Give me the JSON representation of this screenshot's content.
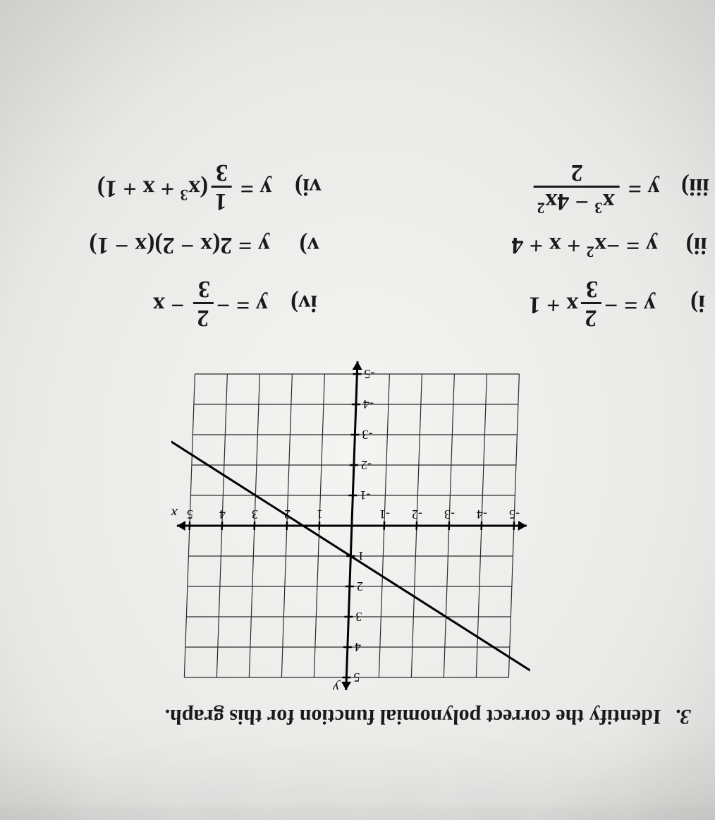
{
  "question": {
    "number": "3.",
    "prompt": "Identify the correct polynomial function for this graph."
  },
  "graph": {
    "type": "line",
    "xlim": [
      -5,
      5
    ],
    "ylim": [
      -5,
      5
    ],
    "xtick_step": 1,
    "ytick_step": 1,
    "grid": true,
    "grid_color": "#2b2b2b",
    "axis_color": "#000000",
    "background_color": "transparent",
    "x_axis_label": "x",
    "y_axis_label": "y",
    "tick_fontsize": 18,
    "axis_label_fontsize": 20,
    "line": {
      "points": [
        [
          -6,
          5
        ],
        [
          7.2,
          -3.8
        ]
      ],
      "color": "#000000",
      "width": 3
    },
    "x_tick_labels": [
      "-5",
      "-4",
      "-3",
      "-2",
      "-1",
      "1",
      "2",
      "3",
      "4",
      "5"
    ],
    "y_tick_labels_pos": [
      "1",
      "2",
      "3",
      "4",
      "5"
    ],
    "y_tick_labels_neg": [
      "-1",
      "-2",
      "-3",
      "-4",
      "-5"
    ]
  },
  "options": {
    "i": {
      "label": "i)",
      "frac_num": "2",
      "frac_den": "3",
      "tail": "x + 1",
      "prefix": "y = −"
    },
    "ii": {
      "label": "ii)",
      "expr_head": "y = −x",
      "exp": "2",
      "expr_tail": " + x + 4"
    },
    "iii": {
      "label": "iii)",
      "frac_num_a": "x",
      "exp_a": "3",
      "frac_num_b": " − 4x",
      "exp_b": "2",
      "frac_den": "2",
      "prefix": "y = "
    },
    "iv": {
      "label": "iv)",
      "frac_num": "2",
      "frac_den": "3",
      "tail": " − x",
      "prefix": "y = −"
    },
    "v": {
      "label": "v)",
      "expr": "y = 2(x − 2)(x − 1)"
    },
    "vi": {
      "label": "vi)",
      "frac_num": "1",
      "frac_den": "3",
      "tail_a": "(x",
      "exp": "3",
      "tail_b": " + x + 1)",
      "prefix": "y = "
    }
  },
  "colors": {
    "text": "#1a1a1a"
  }
}
